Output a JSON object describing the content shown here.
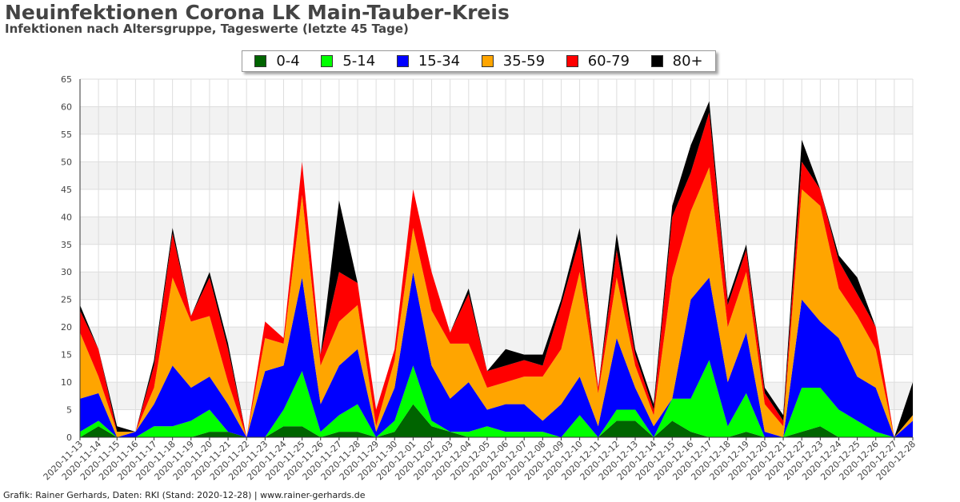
{
  "header": {
    "title": "Neuinfektionen Corona LK Main-Tauber-Kreis",
    "subtitle": "Infektionen nach Altersgruppe, Tageswerte (letzte 45 Tage)"
  },
  "footer": {
    "credit": "Grafik: Rainer Gerhards, Daten: RKI (Stand: 2020-12-28) | www.rainer-gerhards.de"
  },
  "chart_data": {
    "type": "area",
    "stacked": true,
    "title": "Neuinfektionen Corona LK Main-Tauber-Kreis",
    "subtitle": "Infektionen nach Altersgruppe, Tageswerte (letzte 45 Tage)",
    "xlabel": "",
    "ylabel": "",
    "ylim": [
      0,
      65
    ],
    "yticks": [
      0,
      5,
      10,
      15,
      20,
      25,
      30,
      35,
      40,
      45,
      50,
      55,
      60,
      65
    ],
    "grid": true,
    "legend_position": "top-center",
    "x": [
      "2020-11-13",
      "2020-11-14",
      "2020-11-15",
      "2020-11-16",
      "2020-11-17",
      "2020-11-18",
      "2020-11-19",
      "2020-11-20",
      "2020-11-21",
      "2020-11-22",
      "2020-11-23",
      "2020-11-24",
      "2020-11-25",
      "2020-11-26",
      "2020-11-27",
      "2020-11-28",
      "2020-11-29",
      "2020-11-30",
      "2020-12-01",
      "2020-12-02",
      "2020-12-03",
      "2020-12-04",
      "2020-12-05",
      "2020-12-06",
      "2020-12-07",
      "2020-12-08",
      "2020-12-09",
      "2020-12-10",
      "2020-12-11",
      "2020-12-12",
      "2020-12-13",
      "2020-12-14",
      "2020-12-15",
      "2020-12-16",
      "2020-12-17",
      "2020-12-18",
      "2020-12-19",
      "2020-12-20",
      "2020-12-21",
      "2020-12-22",
      "2020-12-23",
      "2020-12-24",
      "2020-12-25",
      "2020-12-26",
      "2020-12-27",
      "2020-12-28"
    ],
    "series": [
      {
        "name": "0-4",
        "color": "#006400",
        "values": [
          0,
          2,
          0,
          0,
          0,
          0,
          0,
          1,
          1,
          0,
          0,
          2,
          2,
          0,
          1,
          1,
          0,
          1,
          6,
          2,
          1,
          0,
          0,
          0,
          0,
          0,
          0,
          0,
          0,
          3,
          3,
          0,
          3,
          1,
          0,
          0,
          1,
          0,
          0,
          1,
          2,
          0,
          0,
          0,
          0,
          0
        ]
      },
      {
        "name": "5-14",
        "color": "#00ff00",
        "values": [
          1,
          1,
          0,
          0,
          2,
          2,
          3,
          4,
          0,
          0,
          0,
          3,
          10,
          1,
          3,
          5,
          0,
          2,
          7,
          1,
          0,
          1,
          2,
          1,
          1,
          1,
          0,
          4,
          0,
          2,
          2,
          0,
          4,
          6,
          14,
          2,
          7,
          0,
          0,
          8,
          7,
          5,
          3,
          1,
          0,
          0
        ]
      },
      {
        "name": "15-34",
        "color": "#0000ff",
        "values": [
          6,
          5,
          0,
          1,
          4,
          11,
          6,
          6,
          5,
          0,
          12,
          8,
          17,
          5,
          9,
          10,
          1,
          6,
          17,
          10,
          6,
          9,
          3,
          5,
          5,
          2,
          6,
          7,
          2,
          13,
          4,
          2,
          0,
          18,
          15,
          8,
          11,
          1,
          0,
          16,
          12,
          13,
          8,
          8,
          0,
          3
        ]
      },
      {
        "name": "35-59",
        "color": "#ffa500",
        "values": [
          12,
          3,
          1,
          0,
          3,
          16,
          12,
          11,
          4,
          0,
          6,
          4,
          15,
          7,
          8,
          8,
          1,
          5,
          8,
          10,
          10,
          7,
          4,
          4,
          5,
          8,
          10,
          19,
          6,
          11,
          4,
          2,
          22,
          16,
          20,
          10,
          11,
          5,
          2,
          20,
          21,
          9,
          11,
          7,
          0,
          1
        ]
      },
      {
        "name": "60-79",
        "color": "#ff0000",
        "values": [
          4,
          5,
          0,
          0,
          4,
          8,
          1,
          7,
          6,
          0,
          3,
          1,
          6,
          2,
          9,
          4,
          3,
          2,
          7,
          7,
          2,
          9,
          3,
          3,
          3,
          2,
          8,
          6,
          1,
          5,
          2,
          1,
          11,
          7,
          10,
          4,
          4,
          2,
          1,
          5,
          3,
          5,
          4,
          4,
          0,
          0
        ]
      },
      {
        "name": "80+",
        "color": "#000000",
        "values": [
          1,
          0,
          1,
          0,
          1,
          1,
          0,
          1,
          1,
          0,
          0,
          0,
          0,
          0,
          13,
          0,
          0,
          0,
          0,
          0,
          0,
          1,
          0,
          3,
          1,
          2,
          1,
          2,
          0,
          3,
          1,
          1,
          2,
          5,
          2,
          1,
          1,
          1,
          1,
          4,
          0,
          1,
          3,
          0,
          0,
          6
        ]
      }
    ]
  }
}
